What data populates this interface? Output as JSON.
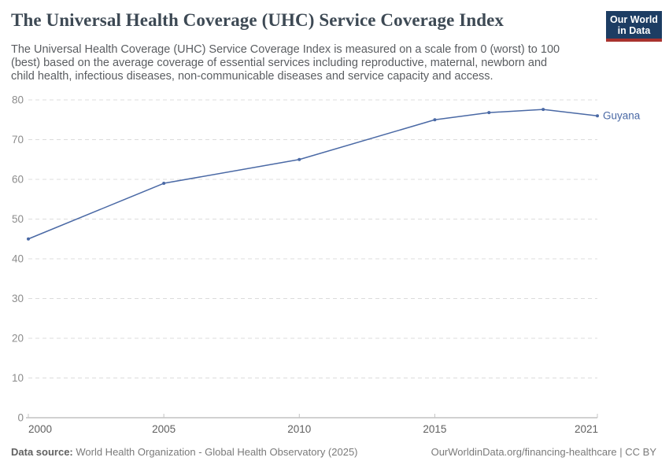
{
  "header": {
    "title": "The Universal Health Coverage (UHC) Service Coverage Index",
    "subtitle": "The Universal Health Coverage (UHC) Service Coverage Index is measured on a scale from 0 (worst) to 100 (best) based on the average coverage of essential services including reproductive, maternal, newborn and child health, infectious diseases, non-communicable diseases and service capacity and access.",
    "logo": {
      "line1": "Our World",
      "line2": "in Data"
    }
  },
  "chart_data": {
    "type": "line",
    "title": "The Universal Health Coverage (UHC) Service Coverage Index",
    "x": [
      2000,
      2005,
      2010,
      2015,
      2017,
      2019,
      2021
    ],
    "series": [
      {
        "name": "Guyana",
        "color": "#4a69a5",
        "values": [
          45,
          59,
          65,
          75,
          76.8,
          77.6,
          76
        ]
      }
    ],
    "xlim": [
      2000,
      2021
    ],
    "ylim": [
      0,
      80
    ],
    "x_ticks": [
      2000,
      2005,
      2010,
      2015,
      2021
    ],
    "y_ticks": [
      0,
      10,
      20,
      30,
      40,
      50,
      60,
      70,
      80
    ],
    "grid": "horizontal-dashed",
    "legend_position": "line-end-label"
  },
  "footer": {
    "datasource_label": "Data source:",
    "datasource_value": " World Health Organization - Global Health Observatory (2025)",
    "link": "OurWorldinData.org/financing-healthcare",
    "license": " | CC BY"
  },
  "colors": {
    "line": "#4a69a5",
    "logo_navy": "#1d3d63",
    "logo_red": "#a8322e",
    "grid": "#dcdcdc",
    "axis": "#a3a3a3",
    "y_tick_label": "#8c8c8c",
    "x_tick_label": "#606060"
  }
}
